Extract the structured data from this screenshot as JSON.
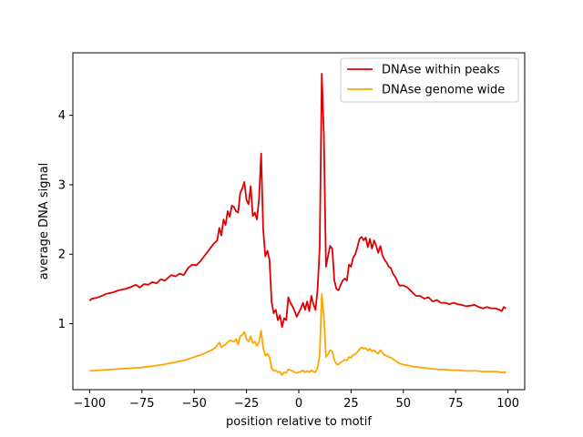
{
  "chart_data": {
    "type": "line",
    "title": "",
    "xlabel": "position relative to motif",
    "ylabel": "average DNA signal",
    "xlim": [
      -108,
      108
    ],
    "ylim": [
      0.05,
      4.9
    ],
    "xticks": [
      -100,
      -75,
      -50,
      -25,
      0,
      25,
      50,
      75,
      100
    ],
    "yticks": [
      1,
      2,
      3,
      4
    ],
    "grid": false,
    "legend_position": "top-right",
    "series": [
      {
        "name": "DNAse within peaks",
        "color": "#e00000",
        "points": [
          [
            -100,
            1.33
          ],
          [
            -99,
            1.36
          ],
          [
            -97,
            1.37
          ],
          [
            -95,
            1.39
          ],
          [
            -92,
            1.43
          ],
          [
            -89,
            1.45
          ],
          [
            -86,
            1.48
          ],
          [
            -83,
            1.5
          ],
          [
            -80,
            1.53
          ],
          [
            -78,
            1.56
          ],
          [
            -76,
            1.52
          ],
          [
            -74,
            1.57
          ],
          [
            -72,
            1.56
          ],
          [
            -70,
            1.6
          ],
          [
            -68,
            1.58
          ],
          [
            -66,
            1.64
          ],
          [
            -64,
            1.62
          ],
          [
            -61,
            1.7
          ],
          [
            -59,
            1.68
          ],
          [
            -57,
            1.72
          ],
          [
            -55,
            1.7
          ],
          [
            -53,
            1.8
          ],
          [
            -51,
            1.85
          ],
          [
            -49,
            1.84
          ],
          [
            -47,
            1.9
          ],
          [
            -45,
            1.98
          ],
          [
            -43,
            2.06
          ],
          [
            -41,
            2.14
          ],
          [
            -39,
            2.2
          ],
          [
            -38,
            2.38
          ],
          [
            -37,
            2.27
          ],
          [
            -36,
            2.5
          ],
          [
            -35,
            2.42
          ],
          [
            -34,
            2.62
          ],
          [
            -33,
            2.54
          ],
          [
            -32,
            2.7
          ],
          [
            -31,
            2.68
          ],
          [
            -30,
            2.62
          ],
          [
            -29,
            2.6
          ],
          [
            -28,
            2.88
          ],
          [
            -27,
            2.95
          ],
          [
            -26,
            3.04
          ],
          [
            -25,
            2.78
          ],
          [
            -24,
            2.72
          ],
          [
            -23,
            2.98
          ],
          [
            -22,
            2.55
          ],
          [
            -21,
            2.6
          ],
          [
            -20,
            2.5
          ],
          [
            -19,
            2.8
          ],
          [
            -18,
            3.45
          ],
          [
            -17,
            2.35
          ],
          [
            -16,
            1.97
          ],
          [
            -15,
            2.05
          ],
          [
            -14,
            1.92
          ],
          [
            -13,
            1.32
          ],
          [
            -12,
            1.15
          ],
          [
            -11,
            1.2
          ],
          [
            -10,
            1.05
          ],
          [
            -9,
            1.12
          ],
          [
            -8,
            0.95
          ],
          [
            -7,
            1.08
          ],
          [
            -6,
            1.05
          ],
          [
            -5,
            1.38
          ],
          [
            -4,
            1.3
          ],
          [
            -3,
            1.25
          ],
          [
            -2,
            1.18
          ],
          [
            -1,
            1.1
          ],
          [
            0,
            1.16
          ],
          [
            1,
            1.22
          ],
          [
            2,
            1.3
          ],
          [
            3,
            1.2
          ],
          [
            4,
            1.32
          ],
          [
            5,
            1.18
          ],
          [
            6,
            1.4
          ],
          [
            7,
            1.28
          ],
          [
            8,
            1.2
          ],
          [
            9,
            1.5
          ],
          [
            10,
            2.1
          ],
          [
            11,
            4.6
          ],
          [
            12,
            3.7
          ],
          [
            13,
            1.82
          ],
          [
            14,
            1.98
          ],
          [
            15,
            2.12
          ],
          [
            16,
            2.08
          ],
          [
            17,
            1.62
          ],
          [
            18,
            1.5
          ],
          [
            19,
            1.48
          ],
          [
            20,
            1.56
          ],
          [
            21,
            1.62
          ],
          [
            22,
            1.65
          ],
          [
            23,
            1.62
          ],
          [
            24,
            1.85
          ],
          [
            25,
            1.82
          ],
          [
            26,
            1.95
          ],
          [
            27,
            2.0
          ],
          [
            28,
            2.1
          ],
          [
            29,
            2.22
          ],
          [
            30,
            2.25
          ],
          [
            31,
            2.2
          ],
          [
            32,
            2.24
          ],
          [
            33,
            2.1
          ],
          [
            34,
            2.22
          ],
          [
            35,
            2.08
          ],
          [
            36,
            2.2
          ],
          [
            37,
            2.12
          ],
          [
            38,
            2.02
          ],
          [
            39,
            2.12
          ],
          [
            40,
            1.98
          ],
          [
            41,
            1.92
          ],
          [
            42,
            1.88
          ],
          [
            43,
            1.82
          ],
          [
            44,
            1.8
          ],
          [
            45,
            1.72
          ],
          [
            46,
            1.68
          ],
          [
            47,
            1.62
          ],
          [
            48,
            1.55
          ],
          [
            50,
            1.55
          ],
          [
            52,
            1.52
          ],
          [
            54,
            1.46
          ],
          [
            56,
            1.4
          ],
          [
            58,
            1.4
          ],
          [
            60,
            1.36
          ],
          [
            62,
            1.38
          ],
          [
            64,
            1.32
          ],
          [
            66,
            1.34
          ],
          [
            68,
            1.3
          ],
          [
            70,
            1.3
          ],
          [
            72,
            1.28
          ],
          [
            74,
            1.3
          ],
          [
            76,
            1.28
          ],
          [
            78,
            1.27
          ],
          [
            80,
            1.25
          ],
          [
            82,
            1.26
          ],
          [
            84,
            1.27
          ],
          [
            86,
            1.24
          ],
          [
            88,
            1.22
          ],
          [
            90,
            1.24
          ],
          [
            92,
            1.22
          ],
          [
            94,
            1.22
          ],
          [
            96,
            1.2
          ],
          [
            97,
            1.18
          ],
          [
            98,
            1.24
          ],
          [
            99,
            1.22
          ]
        ]
      },
      {
        "name": "DNAse genome wide",
        "color": "#ffa500",
        "points": [
          [
            -100,
            0.32
          ],
          [
            -95,
            0.33
          ],
          [
            -90,
            0.34
          ],
          [
            -85,
            0.35
          ],
          [
            -80,
            0.36
          ],
          [
            -75,
            0.37
          ],
          [
            -70,
            0.39
          ],
          [
            -65,
            0.41
          ],
          [
            -60,
            0.44
          ],
          [
            -57,
            0.46
          ],
          [
            -55,
            0.47
          ],
          [
            -52,
            0.5
          ],
          [
            -49,
            0.53
          ],
          [
            -46,
            0.56
          ],
          [
            -43,
            0.6
          ],
          [
            -40,
            0.65
          ],
          [
            -38,
            0.73
          ],
          [
            -37,
            0.66
          ],
          [
            -35,
            0.7
          ],
          [
            -33,
            0.76
          ],
          [
            -31,
            0.74
          ],
          [
            -30,
            0.78
          ],
          [
            -29,
            0.7
          ],
          [
            -28,
            0.82
          ],
          [
            -27,
            0.84
          ],
          [
            -26,
            0.88
          ],
          [
            -25,
            0.78
          ],
          [
            -24,
            0.74
          ],
          [
            -23,
            0.82
          ],
          [
            -22,
            0.72
          ],
          [
            -21,
            0.74
          ],
          [
            -20,
            0.68
          ],
          [
            -19,
            0.74
          ],
          [
            -18,
            0.9
          ],
          [
            -17,
            0.65
          ],
          [
            -16,
            0.54
          ],
          [
            -15,
            0.57
          ],
          [
            -14,
            0.52
          ],
          [
            -13,
            0.36
          ],
          [
            -12,
            0.32
          ],
          [
            -11,
            0.33
          ],
          [
            -10,
            0.3
          ],
          [
            -9,
            0.31
          ],
          [
            -8,
            0.26
          ],
          [
            -7,
            0.3
          ],
          [
            -6,
            0.29
          ],
          [
            -5,
            0.34
          ],
          [
            -4,
            0.33
          ],
          [
            -3,
            0.32
          ],
          [
            -2,
            0.3
          ],
          [
            -1,
            0.29
          ],
          [
            0,
            0.3
          ],
          [
            1,
            0.31
          ],
          [
            2,
            0.33
          ],
          [
            3,
            0.3
          ],
          [
            4,
            0.32
          ],
          [
            5,
            0.3
          ],
          [
            6,
            0.33
          ],
          [
            7,
            0.31
          ],
          [
            8,
            0.3
          ],
          [
            9,
            0.37
          ],
          [
            10,
            0.55
          ],
          [
            11,
            1.43
          ],
          [
            12,
            1.1
          ],
          [
            13,
            0.52
          ],
          [
            14,
            0.56
          ],
          [
            15,
            0.62
          ],
          [
            16,
            0.6
          ],
          [
            17,
            0.47
          ],
          [
            18,
            0.42
          ],
          [
            19,
            0.41
          ],
          [
            20,
            0.44
          ],
          [
            21,
            0.46
          ],
          [
            22,
            0.48
          ],
          [
            23,
            0.47
          ],
          [
            24,
            0.52
          ],
          [
            25,
            0.51
          ],
          [
            26,
            0.55
          ],
          [
            27,
            0.56
          ],
          [
            28,
            0.59
          ],
          [
            29,
            0.63
          ],
          [
            30,
            0.66
          ],
          [
            31,
            0.64
          ],
          [
            32,
            0.65
          ],
          [
            33,
            0.61
          ],
          [
            34,
            0.64
          ],
          [
            35,
            0.6
          ],
          [
            36,
            0.62
          ],
          [
            37,
            0.59
          ],
          [
            38,
            0.57
          ],
          [
            39,
            0.62
          ],
          [
            40,
            0.58
          ],
          [
            41,
            0.55
          ],
          [
            42,
            0.54
          ],
          [
            43,
            0.52
          ],
          [
            44,
            0.51
          ],
          [
            45,
            0.49
          ],
          [
            46,
            0.47
          ],
          [
            47,
            0.45
          ],
          [
            48,
            0.43
          ],
          [
            50,
            0.41
          ],
          [
            52,
            0.4
          ],
          [
            55,
            0.38
          ],
          [
            58,
            0.37
          ],
          [
            61,
            0.36
          ],
          [
            64,
            0.35
          ],
          [
            67,
            0.34
          ],
          [
            70,
            0.34
          ],
          [
            73,
            0.33
          ],
          [
            76,
            0.33
          ],
          [
            79,
            0.32
          ],
          [
            82,
            0.32
          ],
          [
            85,
            0.32
          ],
          [
            88,
            0.31
          ],
          [
            91,
            0.31
          ],
          [
            94,
            0.31
          ],
          [
            97,
            0.3
          ],
          [
            99,
            0.3
          ]
        ]
      }
    ]
  }
}
